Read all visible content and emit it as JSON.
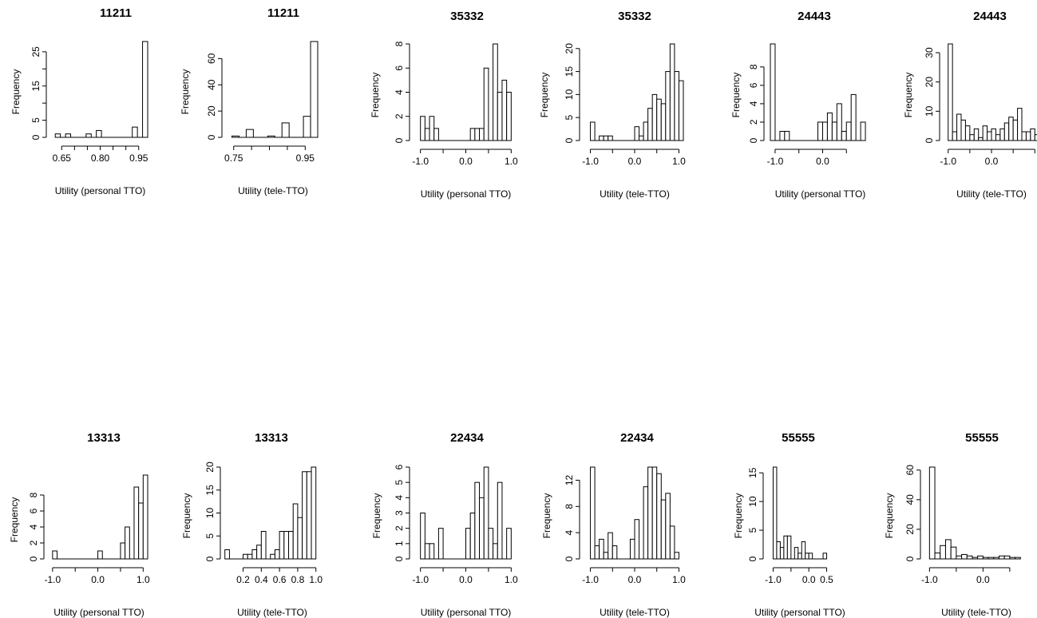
{
  "chart_data": [
    {
      "type": "bar",
      "title": "11211",
      "xlabel": "Utility (personal TTO)",
      "ylabel": "Frequency",
      "xlim": [
        0.615,
        0.985
      ],
      "ylim": [
        0,
        28
      ],
      "xticks": [
        0.65,
        0.7,
        0.75,
        0.8,
        0.85,
        0.9,
        0.95
      ],
      "xtick_labels": [
        "0.65",
        "",
        "",
        "0.80",
        "",
        "",
        "0.95"
      ],
      "yticks": [
        0,
        5,
        10,
        15,
        20,
        25
      ],
      "ytick_labels": [
        "0",
        "5",
        "",
        "15",
        "",
        "25"
      ],
      "bins": [
        [
          0.625,
          0.645,
          1
        ],
        [
          0.645,
          0.665,
          0
        ],
        [
          0.665,
          0.685,
          1
        ],
        [
          0.685,
          0.745,
          0
        ],
        [
          0.745,
          0.765,
          1
        ],
        [
          0.765,
          0.785,
          0
        ],
        [
          0.785,
          0.805,
          2
        ],
        [
          0.805,
          0.925,
          0
        ],
        [
          0.925,
          0.945,
          3
        ],
        [
          0.945,
          0.965,
          0
        ],
        [
          0.965,
          0.985,
          28
        ]
      ]
    },
    {
      "type": "bar",
      "title": "11211",
      "xlabel": "Utility (tele-TTO)",
      "ylabel": "Frequency",
      "xlim": [
        0.735,
        0.985
      ],
      "ylim": [
        0,
        73
      ],
      "xticks": [
        0.75,
        0.8,
        0.85,
        0.9,
        0.95
      ],
      "xtick_labels": [
        "0.75",
        "",
        "",
        "",
        "0.95"
      ],
      "yticks": [
        0,
        20,
        40,
        60
      ],
      "ytick_labels": [
        "0",
        "20",
        "40",
        "60"
      ],
      "bins": [
        [
          0.745,
          0.765,
          1
        ],
        [
          0.765,
          0.785,
          0
        ],
        [
          0.785,
          0.805,
          6
        ],
        [
          0.805,
          0.825,
          0
        ],
        [
          0.825,
          0.845,
          0
        ],
        [
          0.845,
          0.865,
          1
        ],
        [
          0.865,
          0.885,
          0
        ],
        [
          0.885,
          0.905,
          11
        ],
        [
          0.905,
          0.925,
          0
        ],
        [
          0.925,
          0.945,
          0
        ],
        [
          0.945,
          0.965,
          16
        ],
        [
          0.965,
          0.985,
          73
        ]
      ]
    },
    {
      "type": "bar",
      "title": "35332",
      "xlabel": "Utility (personal TTO)",
      "ylabel": "Frequency",
      "xlim": [
        -1.1,
        1.1
      ],
      "ylim": [
        0,
        8
      ],
      "xticks": [
        -1.0,
        -0.5,
        0.0,
        0.5,
        1.0
      ],
      "xtick_labels": [
        "-1.0",
        "",
        "0.0",
        "",
        "1.0"
      ],
      "yticks": [
        0,
        2,
        4,
        6,
        8
      ],
      "ytick_labels": [
        "0",
        "2",
        "4",
        "6",
        "8"
      ],
      "counts": [
        2,
        1,
        2,
        1,
        0,
        0,
        0,
        0,
        0,
        0,
        0,
        1,
        1,
        1,
        6,
        0,
        8,
        4,
        5,
        4
      ],
      "xstart": -1.0,
      "binwidth": 0.1
    },
    {
      "type": "bar",
      "title": "35332",
      "xlabel": "Utility  (tele-TTO)",
      "ylabel": "Frequency",
      "xlim": [
        -1.1,
        1.1
      ],
      "ylim": [
        0,
        21
      ],
      "xticks": [
        -1.0,
        -0.5,
        0.0,
        0.5,
        1.0
      ],
      "xtick_labels": [
        "-1.0",
        "",
        "0.0",
        "",
        "1.0"
      ],
      "yticks": [
        0,
        5,
        10,
        15,
        20
      ],
      "ytick_labels": [
        "0",
        "5",
        "10",
        "15",
        "20"
      ],
      "counts": [
        4,
        0,
        1,
        1,
        1,
        0,
        0,
        0,
        0,
        0,
        3,
        1,
        4,
        7,
        10,
        9,
        8,
        15,
        21,
        15,
        13
      ],
      "xstart": -1.0,
      "binwidth": 0.1
    },
    {
      "type": "bar",
      "title": "24443",
      "xlabel": "Utility (personal TTO)",
      "ylabel": "Frequency",
      "xlim": [
        -1.1,
        1.0
      ],
      "ylim": [
        0,
        10.5
      ],
      "xticks": [
        -1.0,
        -0.5,
        0.0,
        0.5
      ],
      "xtick_labels": [
        "-1.0",
        "",
        "0.0",
        ""
      ],
      "yticks": [
        0,
        2,
        4,
        6,
        8
      ],
      "ytick_labels": [
        "0",
        "2",
        "4",
        "6",
        "8"
      ],
      "counts": [
        10.5,
        0,
        1,
        1,
        0,
        0,
        0,
        0,
        0,
        0,
        2,
        2,
        3,
        2,
        4,
        1,
        2,
        5,
        0,
        2
      ],
      "xstart": -1.1,
      "binwidth": 0.1
    },
    {
      "type": "bar",
      "title": "24443",
      "xlabel": "Utility  (tele-TTO)",
      "ylabel": "Frequency",
      "xlim": [
        -1.05,
        1.05
      ],
      "ylim": [
        0,
        33
      ],
      "xticks": [
        -1.0,
        -0.5,
        0.0,
        0.5,
        1.0
      ],
      "xtick_labels": [
        "-1.0",
        "",
        "0.0",
        "",
        ""
      ],
      "yticks": [
        0,
        10,
        20,
        30
      ],
      "ytick_labels": [
        "0",
        "10",
        "20",
        "30"
      ],
      "counts": [
        33,
        3,
        9,
        7,
        5,
        2,
        4,
        1,
        5,
        3,
        4,
        2,
        4,
        6,
        8,
        7,
        11,
        3,
        3,
        4,
        2
      ],
      "xstart": -1.0,
      "binwidth": 0.1
    },
    {
      "type": "bar",
      "title": "13313",
      "xlabel": "Utility (personal TTO)",
      "ylabel": "Frequency",
      "xlim": [
        -1.05,
        1.1
      ],
      "ylim": [
        0,
        10.5
      ],
      "xticks": [
        -1.0,
        -0.5,
        0.0,
        0.5,
        1.0
      ],
      "xtick_labels": [
        "-1.0",
        "",
        "0.0",
        "",
        "1.0"
      ],
      "yticks": [
        0,
        2,
        4,
        6,
        8
      ],
      "ytick_labels": [
        "0",
        "2",
        "4",
        "6",
        "8"
      ],
      "counts": [
        1,
        0,
        0,
        0,
        0,
        0,
        0,
        0,
        0,
        0,
        1,
        0,
        0,
        0,
        0,
        2,
        4,
        0,
        9,
        7,
        10.5
      ],
      "xstart": -1.0,
      "binwidth": 0.1
    },
    {
      "type": "bar",
      "title": "13313",
      "xlabel": "Utility  (tele-TTO)",
      "ylabel": "Frequency",
      "xlim": [
        0.02,
        1.02
      ],
      "ylim": [
        0,
        20
      ],
      "xticks": [
        0.2,
        0.4,
        0.6,
        0.8,
        1.0
      ],
      "xtick_labels": [
        "0.2",
        "0.4",
        "0.6",
        "0.8",
        "1.0"
      ],
      "yticks": [
        0,
        5,
        10,
        15,
        20
      ],
      "ytick_labels": [
        "0",
        "5",
        "10",
        "15",
        "20"
      ],
      "counts": [
        2,
        0,
        0,
        0,
        1,
        1,
        2,
        3,
        6,
        0,
        1,
        2,
        6,
        6,
        6,
        12,
        9,
        19,
        19,
        20
      ],
      "xstart": 0.0,
      "binwidth": 0.05
    },
    {
      "type": "bar",
      "title": "22434",
      "xlabel": "Utility (personal TTO)",
      "ylabel": "Frequency",
      "xlim": [
        -1.1,
        1.1
      ],
      "ylim": [
        0,
        6
      ],
      "xticks": [
        -1.0,
        -0.5,
        0.0,
        0.5,
        1.0
      ],
      "xtick_labels": [
        "-1.0",
        "",
        "0.0",
        "",
        "1.0"
      ],
      "yticks": [
        0,
        1,
        2,
        3,
        4,
        5,
        6
      ],
      "ytick_labels": [
        "0",
        "1",
        "2",
        "3",
        "4",
        "5",
        "6"
      ],
      "counts": [
        3,
        1,
        1,
        0,
        2,
        0,
        0,
        0,
        0,
        0,
        2,
        3,
        5,
        4,
        6,
        2,
        1,
        5,
        0,
        2
      ],
      "xstart": -1.0,
      "binwidth": 0.1
    },
    {
      "type": "bar",
      "title": "22434",
      "xlabel": "Utility  (tele-TTO)",
      "ylabel": "Frequency",
      "xlim": [
        -1.1,
        1.1
      ],
      "ylim": [
        0,
        14
      ],
      "xticks": [
        -1.0,
        -0.5,
        0.0,
        0.5,
        1.0
      ],
      "xtick_labels": [
        "-1.0",
        "",
        "0.0",
        "",
        "1.0"
      ],
      "yticks": [
        0,
        4,
        8,
        12
      ],
      "ytick_labels": [
        "0",
        "4",
        "8",
        "12"
      ],
      "counts": [
        14,
        2,
        3,
        1,
        4,
        2,
        0,
        0,
        0,
        3,
        6,
        0,
        11,
        14,
        14,
        13,
        9,
        10,
        5,
        1
      ],
      "xstart": -1.0,
      "binwidth": 0.1
    },
    {
      "type": "bar",
      "title": "55555",
      "xlabel": "Utility (personal TTO)",
      "ylabel": "Frequency",
      "xlim": [
        -1.1,
        0.6
      ],
      "ylim": [
        0,
        16
      ],
      "xticks": [
        -1.0,
        -0.5,
        0.0,
        0.5
      ],
      "xtick_labels": [
        "-1.0",
        "",
        "0.0",
        "0.5"
      ],
      "yticks": [
        0,
        5,
        10,
        15
      ],
      "ytick_labels": [
        "0",
        "5",
        "10",
        "15"
      ],
      "counts": [
        16,
        3,
        2,
        4,
        4,
        0,
        2,
        1,
        3,
        1,
        1,
        0,
        0,
        0,
        1
      ],
      "xstart": -1.0,
      "binwidth": 0.1
    },
    {
      "type": "bar",
      "title": "55555",
      "xlabel": "Utility  (tele-TTO)",
      "ylabel": "Frequency",
      "xlim": [
        -1.05,
        0.8
      ],
      "ylim": [
        0,
        62
      ],
      "xticks": [
        -1.0,
        -0.5,
        0.0,
        0.5
      ],
      "xtick_labels": [
        "-1.0",
        "",
        "0.0",
        ""
      ],
      "yticks": [
        0,
        20,
        40,
        60
      ],
      "ytick_labels": [
        "0",
        "20",
        "40",
        "60"
      ],
      "counts": [
        62,
        4,
        9,
        13,
        8,
        2,
        3,
        2,
        1,
        2,
        1,
        1,
        1,
        2,
        2,
        1,
        1
      ],
      "xstart": -1.0,
      "binwidth": 0.1
    }
  ]
}
